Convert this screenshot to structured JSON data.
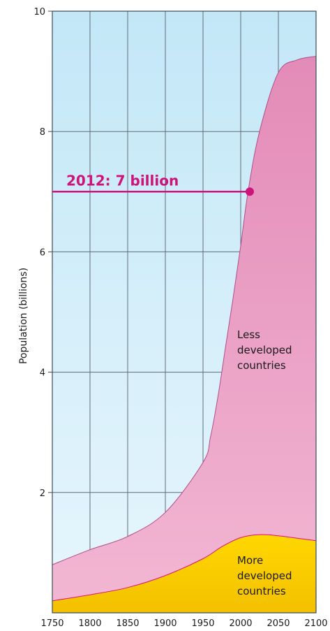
{
  "chart_data": {
    "type": "area",
    "stacked": true,
    "ylabel": "Population (billions)",
    "xlabel": "",
    "xlim": [
      1750,
      2100
    ],
    "ylim": [
      0,
      10
    ],
    "x_ticks": [
      "1750",
      "1800",
      "1850",
      "1900",
      "1950",
      "2000",
      "2050",
      "2100"
    ],
    "y_ticks": [
      "2",
      "4",
      "6",
      "8",
      "10"
    ],
    "grid": true,
    "series": [
      {
        "name": "More developed countries",
        "label_lines": [
          "More",
          "developed",
          "countries"
        ],
        "color": "#ffd200",
        "x": [
          1750,
          1800,
          1850,
          1900,
          1950,
          1975,
          2000,
          2025,
          2050,
          2075,
          2100
        ],
        "values": [
          0.2,
          0.3,
          0.42,
          0.62,
          0.9,
          1.1,
          1.25,
          1.3,
          1.28,
          1.24,
          1.2
        ]
      },
      {
        "name": "Less developed countries",
        "label_lines": [
          "Less",
          "developed",
          "countries"
        ],
        "color": "#e991bd",
        "x": [
          1750,
          1800,
          1850,
          1900,
          1950,
          1960,
          1970,
          1980,
          1990,
          2000,
          2010,
          2025,
          2050,
          2075,
          2100
        ],
        "values": [
          0.6,
          0.75,
          0.85,
          1.05,
          1.6,
          1.95,
          2.55,
          3.3,
          4.05,
          4.85,
          5.75,
          6.7,
          7.7,
          7.95,
          8.05
        ]
      }
    ],
    "highlight": {
      "label": "2012: 7 billion",
      "x": 2012,
      "y": 7,
      "color": "#cc147a"
    },
    "colors": {
      "plot_background_top": "#c3e7f7",
      "plot_background_bottom": "#e7f6fd",
      "grid": "#5e6d78"
    }
  }
}
